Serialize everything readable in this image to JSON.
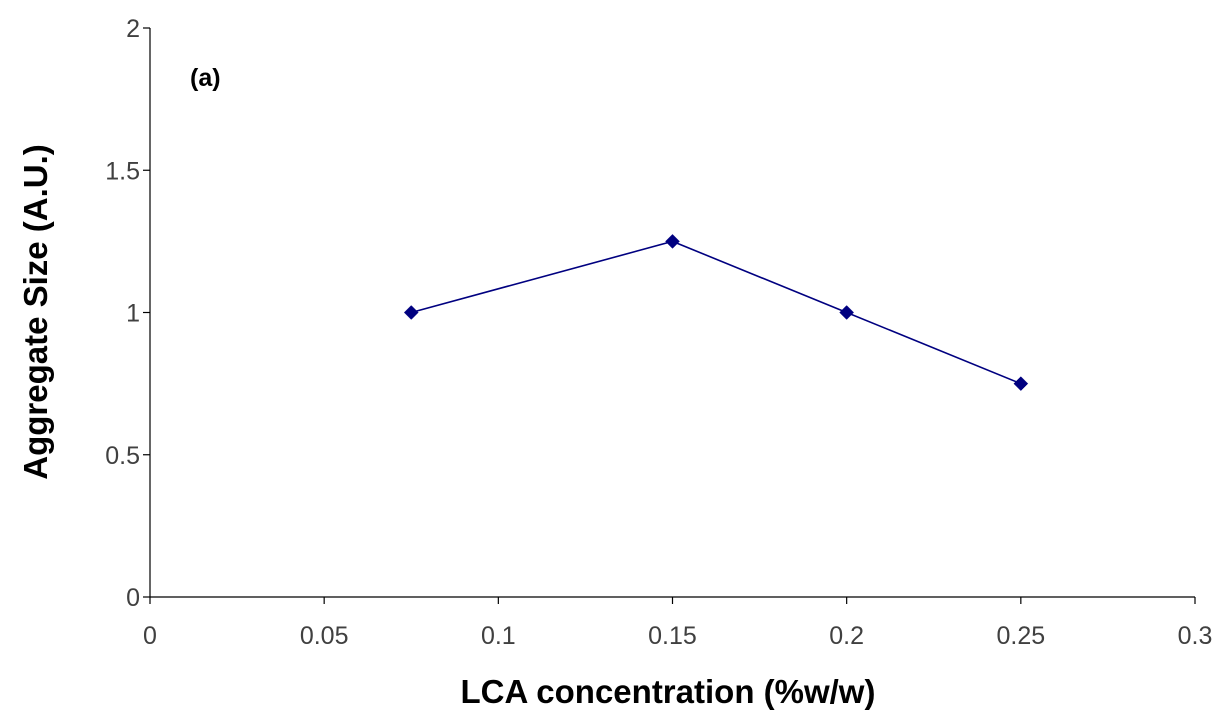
{
  "chart_data": {
    "type": "line",
    "panel_label": "(a)",
    "xlabel": "LCA concentration (%w/w)",
    "ylabel": "Aggregate Size (A.U.)",
    "xlim": [
      0,
      0.3
    ],
    "ylim": [
      0,
      2
    ],
    "x_ticks": [
      0,
      0.05,
      0.1,
      0.15,
      0.2,
      0.25,
      0.3
    ],
    "x_tick_labels": [
      "0",
      "0.05",
      "0.1",
      "0.15",
      "0.2",
      "0.25",
      "0.3"
    ],
    "y_ticks": [
      0,
      0.5,
      1,
      1.5,
      2
    ],
    "y_tick_labels": [
      "0",
      "0.5",
      "1",
      "1.5",
      "2"
    ],
    "grid": false,
    "legend": "none",
    "series": [
      {
        "color": "#000080",
        "marker": "diamond",
        "x": [
          0.075,
          0.15,
          0.2,
          0.25
        ],
        "y": [
          1.0,
          1.25,
          1.0,
          0.75
        ]
      }
    ]
  }
}
